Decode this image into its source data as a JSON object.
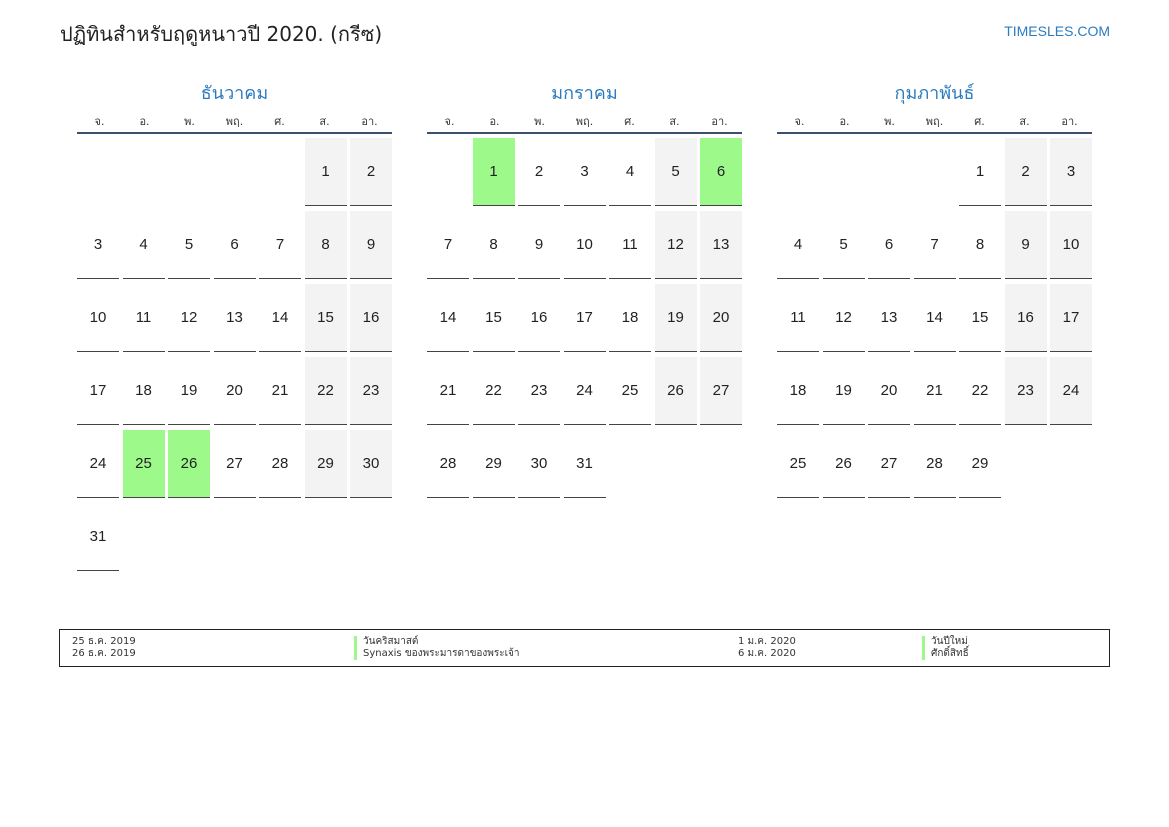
{
  "header": {
    "title": "ปฏิทินสำหรับฤดูหนาวปี 2020. (กรีซ)",
    "brand": "TIMESLES.COM"
  },
  "weekdays": [
    "จ.",
    "อ.",
    "พ.",
    "พฤ.",
    "ศ.",
    "ส.",
    "อา."
  ],
  "months": [
    {
      "name": "ธันวาคม",
      "start_weekday": 6,
      "days_in_month": 31,
      "holidays": [
        25,
        26
      ]
    },
    {
      "name": "มกราคม",
      "start_weekday": 2,
      "days_in_month": 31,
      "holidays": [
        1,
        6
      ]
    },
    {
      "name": "กุมภาพันธ์",
      "start_weekday": 5,
      "days_in_month": 29,
      "holidays": []
    }
  ],
  "legend": [
    {
      "date": "25 ธ.ค. 2019",
      "name": "วันคริสมาสต์"
    },
    {
      "date": "26 ธ.ค. 2019",
      "name": "Synaxis ของพระมารดาของพระเจ้า"
    },
    {
      "date": "1 ม.ค. 2020",
      "name": "วันปีใหม่"
    },
    {
      "date": "6 ม.ค. 2020",
      "name": "ศักดิ์สิทธิ์"
    }
  ],
  "colors": {
    "accent": "#2b7bc0",
    "holiday": "#9cf98a",
    "weekend": "#f3f3f3"
  }
}
